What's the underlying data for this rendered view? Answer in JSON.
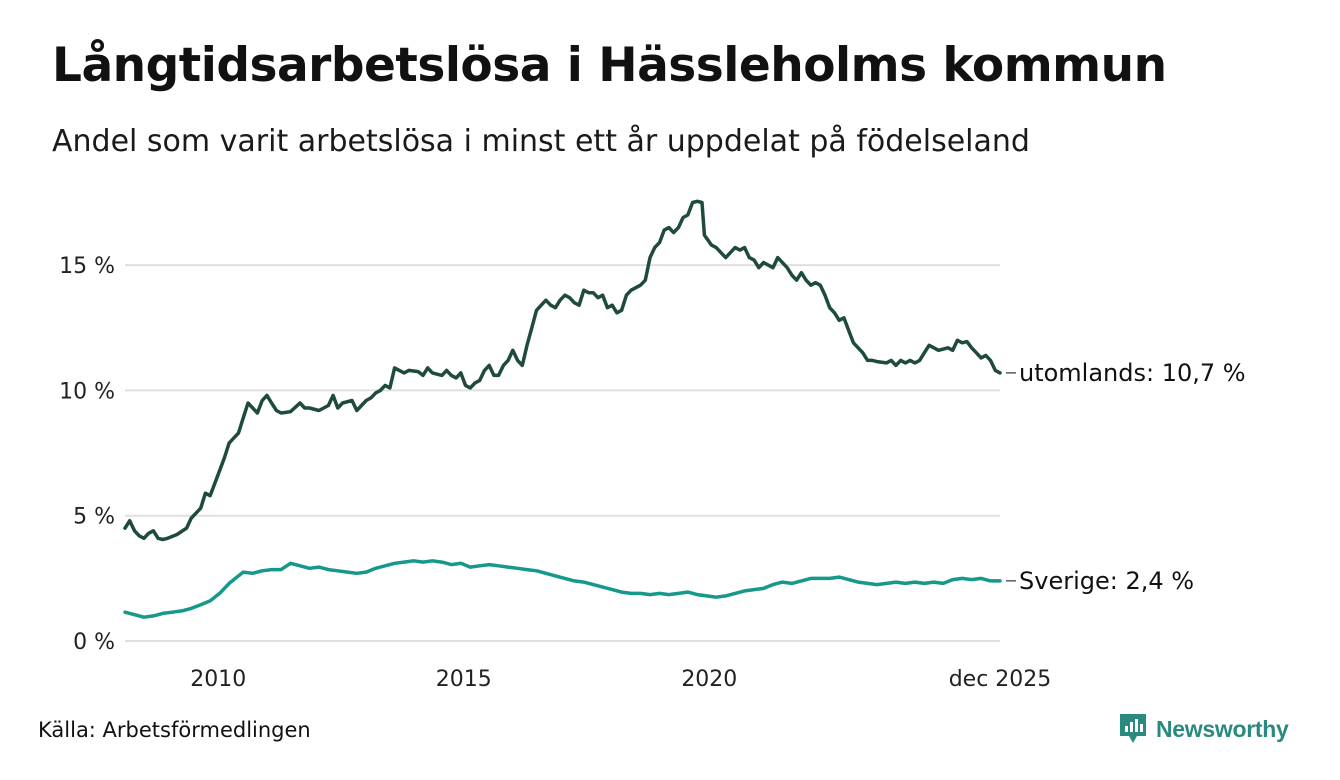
{
  "header": {
    "title": "Långtidsarbetslösa i Hässleholms kommun",
    "subtitle": "Andel som varit arbetslösa i minst ett år uppdelat på födelseland"
  },
  "footer": {
    "source": "Källa: Arbetsförmedlingen",
    "brand": "Newsworthy"
  },
  "colors": {
    "utomlands": "#1f4a3e",
    "sverige": "#16988a",
    "grid": "#e0e0e0",
    "brand": "#2a8a80"
  },
  "chart_data": {
    "type": "line",
    "title": "Långtidsarbetslösa i Hässleholms kommun",
    "xlabel": "",
    "ylabel": "",
    "xlim": [
      2008.1,
      2025.92
    ],
    "ylim": [
      0,
      17.6
    ],
    "grid": true,
    "y_ticks": [
      {
        "value": 0,
        "label": "0 %"
      },
      {
        "value": 5,
        "label": "5 %"
      },
      {
        "value": 10,
        "label": "10 %"
      },
      {
        "value": 15,
        "label": "15 %"
      }
    ],
    "x_ticks": [
      {
        "value": 2010,
        "label": "2010"
      },
      {
        "value": 2015,
        "label": "2015"
      },
      {
        "value": 2020,
        "label": "2020"
      },
      {
        "value": 2025.92,
        "label": "dec 2025"
      }
    ],
    "series": [
      {
        "name": "utomlands",
        "end_label": "utomlands: 10,7 %",
        "points": [
          [
            2008.1,
            4.5
          ],
          [
            2008.2,
            4.8
          ],
          [
            2008.3,
            4.4
          ],
          [
            2008.4,
            4.2
          ],
          [
            2008.5,
            4.1
          ],
          [
            2008.6,
            4.3
          ],
          [
            2008.7,
            4.4
          ],
          [
            2008.8,
            4.1
          ],
          [
            2008.9,
            4.05
          ],
          [
            2009.0,
            4.1
          ],
          [
            2009.2,
            4.25
          ],
          [
            2009.4,
            4.5
          ],
          [
            2009.5,
            4.9
          ],
          [
            2009.7,
            5.3
          ],
          [
            2009.8,
            5.9
          ],
          [
            2009.9,
            5.8
          ],
          [
            2010.0,
            6.3
          ],
          [
            2010.1,
            6.8
          ],
          [
            2010.2,
            7.3
          ],
          [
            2010.3,
            7.9
          ],
          [
            2010.4,
            8.1
          ],
          [
            2010.5,
            8.3
          ],
          [
            2010.6,
            8.9
          ],
          [
            2010.7,
            9.5
          ],
          [
            2010.8,
            9.3
          ],
          [
            2010.9,
            9.1
          ],
          [
            2011.0,
            9.6
          ],
          [
            2011.1,
            9.8
          ],
          [
            2011.2,
            9.5
          ],
          [
            2011.3,
            9.2
          ],
          [
            2011.4,
            9.1
          ],
          [
            2011.6,
            9.15
          ],
          [
            2011.8,
            9.5
          ],
          [
            2011.9,
            9.3
          ],
          [
            2012.0,
            9.3
          ],
          [
            2012.2,
            9.2
          ],
          [
            2012.4,
            9.4
          ],
          [
            2012.5,
            9.8
          ],
          [
            2012.6,
            9.3
          ],
          [
            2012.7,
            9.5
          ],
          [
            2012.9,
            9.6
          ],
          [
            2013.0,
            9.2
          ],
          [
            2013.1,
            9.4
          ],
          [
            2013.2,
            9.6
          ],
          [
            2013.3,
            9.7
          ],
          [
            2013.4,
            9.9
          ],
          [
            2013.5,
            10.0
          ],
          [
            2013.6,
            10.2
          ],
          [
            2013.7,
            10.1
          ],
          [
            2013.8,
            10.9
          ],
          [
            2013.9,
            10.8
          ],
          [
            2014.0,
            10.7
          ],
          [
            2014.1,
            10.8
          ],
          [
            2014.3,
            10.75
          ],
          [
            2014.4,
            10.6
          ],
          [
            2014.5,
            10.9
          ],
          [
            2014.6,
            10.7
          ],
          [
            2014.8,
            10.6
          ],
          [
            2014.9,
            10.8
          ],
          [
            2015.0,
            10.6
          ],
          [
            2015.1,
            10.5
          ],
          [
            2015.2,
            10.7
          ],
          [
            2015.3,
            10.2
          ],
          [
            2015.4,
            10.1
          ],
          [
            2015.5,
            10.3
          ],
          [
            2015.6,
            10.4
          ],
          [
            2015.7,
            10.8
          ],
          [
            2015.8,
            11.0
          ],
          [
            2015.9,
            10.6
          ],
          [
            2016.0,
            10.6
          ],
          [
            2016.1,
            11.0
          ],
          [
            2016.2,
            11.2
          ],
          [
            2016.3,
            11.6
          ],
          [
            2016.4,
            11.2
          ],
          [
            2016.5,
            11.0
          ],
          [
            2016.6,
            11.8
          ],
          [
            2016.7,
            12.5
          ],
          [
            2016.8,
            13.2
          ],
          [
            2016.9,
            13.4
          ],
          [
            2017.0,
            13.6
          ],
          [
            2017.1,
            13.4
          ],
          [
            2017.2,
            13.3
          ],
          [
            2017.3,
            13.6
          ],
          [
            2017.4,
            13.8
          ],
          [
            2017.5,
            13.7
          ],
          [
            2017.6,
            13.5
          ],
          [
            2017.7,
            13.4
          ],
          [
            2017.8,
            14.0
          ],
          [
            2017.9,
            13.9
          ],
          [
            2018.0,
            13.9
          ],
          [
            2018.1,
            13.7
          ],
          [
            2018.2,
            13.8
          ],
          [
            2018.3,
            13.3
          ],
          [
            2018.4,
            13.4
          ],
          [
            2018.5,
            13.1
          ],
          [
            2018.6,
            13.2
          ],
          [
            2018.7,
            13.8
          ],
          [
            2018.8,
            14.0
          ],
          [
            2018.9,
            14.1
          ],
          [
            2019.0,
            14.2
          ],
          [
            2019.1,
            14.4
          ],
          [
            2019.2,
            15.3
          ],
          [
            2019.3,
            15.7
          ],
          [
            2019.4,
            15.9
          ],
          [
            2019.5,
            16.4
          ],
          [
            2019.6,
            16.5
          ],
          [
            2019.7,
            16.3
          ],
          [
            2019.8,
            16.5
          ],
          [
            2019.9,
            16.9
          ],
          [
            2020.0,
            17.0
          ],
          [
            2020.1,
            17.5
          ],
          [
            2020.2,
            17.55
          ],
          [
            2020.3,
            17.5
          ],
          [
            2020.35,
            16.2
          ],
          [
            2020.5,
            15.8
          ],
          [
            2020.6,
            15.7
          ],
          [
            2020.7,
            15.5
          ],
          [
            2020.8,
            15.3
          ],
          [
            2020.9,
            15.5
          ],
          [
            2021.0,
            15.7
          ],
          [
            2021.1,
            15.6
          ],
          [
            2021.2,
            15.7
          ],
          [
            2021.3,
            15.3
          ],
          [
            2021.4,
            15.2
          ],
          [
            2021.5,
            14.9
          ],
          [
            2021.6,
            15.1
          ],
          [
            2021.7,
            15.0
          ],
          [
            2021.8,
            14.9
          ],
          [
            2021.9,
            15.3
          ],
          [
            2022.0,
            15.1
          ],
          [
            2022.1,
            14.9
          ],
          [
            2022.2,
            14.6
          ],
          [
            2022.3,
            14.4
          ],
          [
            2022.4,
            14.7
          ],
          [
            2022.5,
            14.4
          ],
          [
            2022.6,
            14.2
          ],
          [
            2022.7,
            14.3
          ],
          [
            2022.8,
            14.2
          ],
          [
            2022.9,
            13.8
          ],
          [
            2023.0,
            13.3
          ],
          [
            2023.1,
            13.1
          ],
          [
            2023.2,
            12.8
          ],
          [
            2023.3,
            12.9
          ],
          [
            2023.4,
            12.4
          ],
          [
            2023.5,
            11.9
          ],
          [
            2023.6,
            11.7
          ],
          [
            2023.7,
            11.5
          ],
          [
            2023.8,
            11.2
          ],
          [
            2023.9,
            11.2
          ],
          [
            2024.0,
            11.15
          ],
          [
            2024.2,
            11.1
          ],
          [
            2024.3,
            11.2
          ],
          [
            2024.4,
            11.0
          ],
          [
            2024.5,
            11.2
          ],
          [
            2024.6,
            11.1
          ],
          [
            2024.7,
            11.2
          ],
          [
            2024.8,
            11.1
          ],
          [
            2024.9,
            11.2
          ],
          [
            2025.0,
            11.5
          ],
          [
            2025.1,
            11.8
          ],
          [
            2025.2,
            11.7
          ],
          [
            2025.3,
            11.6
          ],
          [
            2025.5,
            11.7
          ],
          [
            2025.6,
            11.6
          ],
          [
            2025.7,
            12.0
          ],
          [
            2025.8,
            11.9
          ],
          [
            2025.9,
            11.95
          ],
          [
            2026.0,
            11.7
          ],
          [
            2026.1,
            11.5
          ],
          [
            2026.2,
            11.3
          ],
          [
            2026.3,
            11.4
          ],
          [
            2026.4,
            11.2
          ],
          [
            2026.5,
            10.8
          ],
          [
            2026.6,
            10.7
          ]
        ]
      },
      {
        "name": "Sverige",
        "end_label": "Sverige:  2,4 %",
        "points": [
          [
            2008.1,
            1.15
          ],
          [
            2008.3,
            1.05
          ],
          [
            2008.5,
            0.95
          ],
          [
            2008.7,
            1.0
          ],
          [
            2008.9,
            1.1
          ],
          [
            2009.1,
            1.15
          ],
          [
            2009.3,
            1.2
          ],
          [
            2009.5,
            1.3
          ],
          [
            2009.7,
            1.45
          ],
          [
            2009.9,
            1.6
          ],
          [
            2010.1,
            1.9
          ],
          [
            2010.3,
            2.3
          ],
          [
            2010.5,
            2.6
          ],
          [
            2010.6,
            2.75
          ],
          [
            2010.8,
            2.7
          ],
          [
            2011.0,
            2.8
          ],
          [
            2011.2,
            2.85
          ],
          [
            2011.4,
            2.85
          ],
          [
            2011.6,
            3.1
          ],
          [
            2011.8,
            3.0
          ],
          [
            2012.0,
            2.9
          ],
          [
            2012.2,
            2.95
          ],
          [
            2012.4,
            2.85
          ],
          [
            2012.6,
            2.8
          ],
          [
            2012.8,
            2.75
          ],
          [
            2013.0,
            2.7
          ],
          [
            2013.2,
            2.75
          ],
          [
            2013.4,
            2.9
          ],
          [
            2013.6,
            3.0
          ],
          [
            2013.8,
            3.1
          ],
          [
            2014.0,
            3.15
          ],
          [
            2014.2,
            3.2
          ],
          [
            2014.4,
            3.15
          ],
          [
            2014.6,
            3.2
          ],
          [
            2014.8,
            3.15
          ],
          [
            2015.0,
            3.05
          ],
          [
            2015.2,
            3.1
          ],
          [
            2015.4,
            2.95
          ],
          [
            2015.6,
            3.0
          ],
          [
            2015.8,
            3.05
          ],
          [
            2016.0,
            3.0
          ],
          [
            2016.2,
            2.95
          ],
          [
            2016.4,
            2.9
          ],
          [
            2016.6,
            2.85
          ],
          [
            2016.8,
            2.8
          ],
          [
            2017.0,
            2.7
          ],
          [
            2017.2,
            2.6
          ],
          [
            2017.4,
            2.5
          ],
          [
            2017.6,
            2.4
          ],
          [
            2017.8,
            2.35
          ],
          [
            2018.0,
            2.25
          ],
          [
            2018.2,
            2.15
          ],
          [
            2018.4,
            2.05
          ],
          [
            2018.6,
            1.95
          ],
          [
            2018.8,
            1.9
          ],
          [
            2019.0,
            1.9
          ],
          [
            2019.2,
            1.85
          ],
          [
            2019.4,
            1.9
          ],
          [
            2019.6,
            1.85
          ],
          [
            2019.8,
            1.9
          ],
          [
            2020.0,
            1.95
          ],
          [
            2020.2,
            1.85
          ],
          [
            2020.4,
            1.8
          ],
          [
            2020.6,
            1.75
          ],
          [
            2020.8,
            1.8
          ],
          [
            2021.0,
            1.9
          ],
          [
            2021.2,
            2.0
          ],
          [
            2021.4,
            2.05
          ],
          [
            2021.6,
            2.1
          ],
          [
            2021.8,
            2.25
          ],
          [
            2022.0,
            2.35
          ],
          [
            2022.2,
            2.3
          ],
          [
            2022.4,
            2.4
          ],
          [
            2022.6,
            2.5
          ],
          [
            2022.8,
            2.5
          ],
          [
            2023.0,
            2.5
          ],
          [
            2023.2,
            2.55
          ],
          [
            2023.4,
            2.45
          ],
          [
            2023.6,
            2.35
          ],
          [
            2023.8,
            2.3
          ],
          [
            2024.0,
            2.25
          ],
          [
            2024.2,
            2.3
          ],
          [
            2024.4,
            2.35
          ],
          [
            2024.6,
            2.3
          ],
          [
            2024.8,
            2.35
          ],
          [
            2025.0,
            2.3
          ],
          [
            2025.2,
            2.35
          ],
          [
            2025.4,
            2.3
          ],
          [
            2025.6,
            2.45
          ],
          [
            2025.8,
            2.5
          ],
          [
            2026.0,
            2.45
          ],
          [
            2026.2,
            2.5
          ],
          [
            2026.4,
            2.4
          ],
          [
            2026.6,
            2.4
          ]
        ]
      }
    ]
  }
}
